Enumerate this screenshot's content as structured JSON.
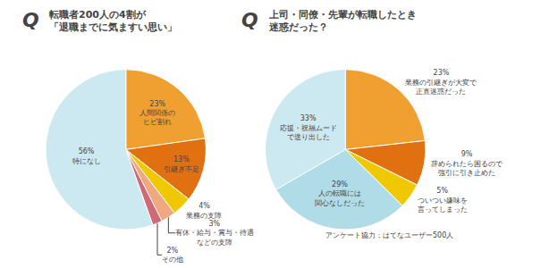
{
  "chart_data": [
    {
      "type": "pie",
      "title": "転職者200人の4割が\n「退職までに気ますい思い」",
      "annotations": [
        "Q"
      ],
      "categories": [
        "人間関係の\nヒビ割れ",
        "引継ぎ不足",
        "業務の支障",
        "有休・給与・賞与・待遇\nなどの支障",
        "その他",
        "特になし"
      ],
      "values": [
        23,
        13,
        4,
        3,
        2,
        56
      ],
      "value_labels": [
        "23%",
        "13%",
        "4%",
        "3%",
        "2%",
        "56%"
      ],
      "colors": [
        "#f0a030",
        "#e07010",
        "#f0c800",
        "#f0a880",
        "#d06878",
        "#cce8f0"
      ],
      "data_labels": true
    },
    {
      "type": "pie",
      "title": "上司・同僚・先輩が転職したとき\n迷惑だった？",
      "annotations": [
        "Q",
        "アンケート協力：はてなユーザー500人"
      ],
      "categories": [
        "業務の引継ぎが大変で\n正直迷惑だった",
        "辞められたら困るので\n強引に引き止めた",
        "ついつい嫌味を\n言ってしまった",
        "人の転職には\n関心なしだった",
        "応援・祝福ムード\nで送り出した"
      ],
      "values": [
        23,
        9,
        5,
        29,
        33
      ],
      "value_labels": [
        "23%",
        "9%",
        "5%",
        "29%",
        "33%"
      ],
      "colors": [
        "#f0a030",
        "#e07010",
        "#f0c800",
        "#b0dce8",
        "#cce8f0"
      ],
      "data_labels": true
    }
  ]
}
